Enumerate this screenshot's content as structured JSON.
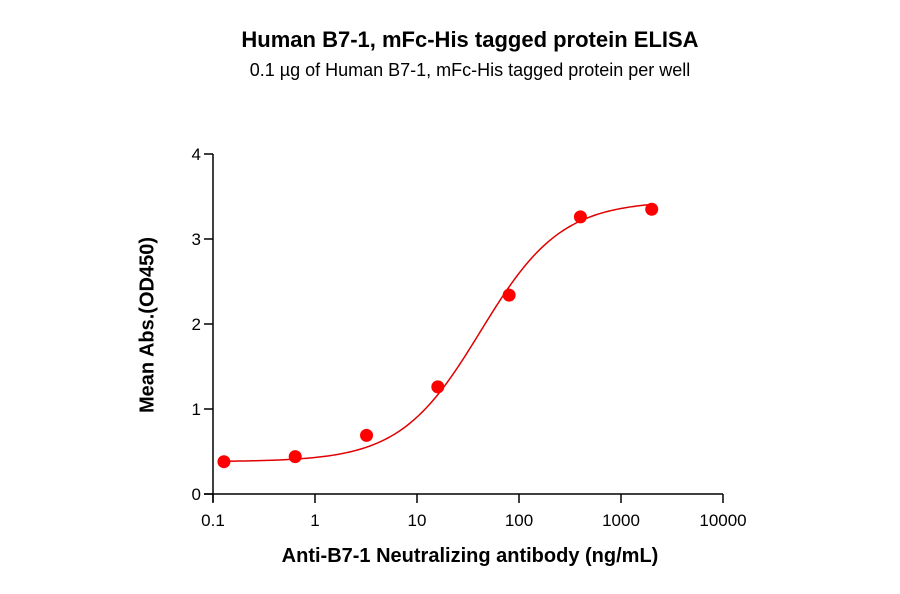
{
  "chart_data": {
    "type": "scatter",
    "title": "Human B7-1, mFc-His tagged protein ELISA",
    "subtitle": "0.1 µg of Human B7-1, mFc-His tagged protein per well",
    "xlabel": "Anti-B7-1 Neutralizing antibody (ng/mL)",
    "ylabel": "Mean Abs.(OD450)",
    "xscale": "log",
    "xlim": [
      0.1,
      10000
    ],
    "ylim": [
      0,
      4
    ],
    "xticks": [
      "0.1",
      "1",
      "10",
      "100",
      "1000",
      "10000"
    ],
    "yticks": [
      "0",
      "1",
      "2",
      "3",
      "4"
    ],
    "grid": false,
    "legend": null,
    "series": [
      {
        "name": "Mean Abs.(OD450)",
        "color": "#ff0000",
        "x": [
          0.128,
          0.64,
          3.2,
          16,
          80,
          400,
          2000
        ],
        "y": [
          0.38,
          0.44,
          0.69,
          1.26,
          2.34,
          3.26,
          3.35
        ]
      }
    ],
    "fit": {
      "type": "4PL",
      "color": "#e00000",
      "bottom": 0.38,
      "top": 3.45,
      "ec50": 42,
      "hill": 1.1
    }
  }
}
